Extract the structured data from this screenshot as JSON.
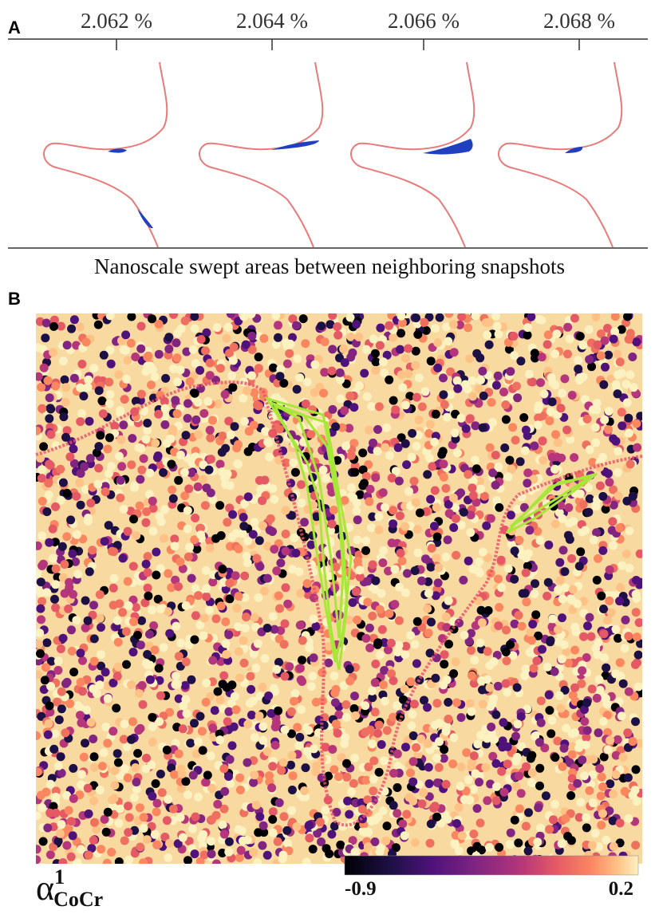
{
  "panel_a": {
    "label": "A",
    "strain_labels": [
      "2.062 %",
      "2.064 %",
      "2.066 %",
      "2.068 %"
    ],
    "caption": "Nanoscale swept areas between neighboring snapshots"
  },
  "panel_b": {
    "label": "B",
    "colorbar": {
      "symbol": "α",
      "superscript": "1",
      "subscript": "CoCr",
      "range": [
        -0.9,
        0.2
      ],
      "ticks": [
        -0.9,
        0.2
      ]
    }
  }
}
